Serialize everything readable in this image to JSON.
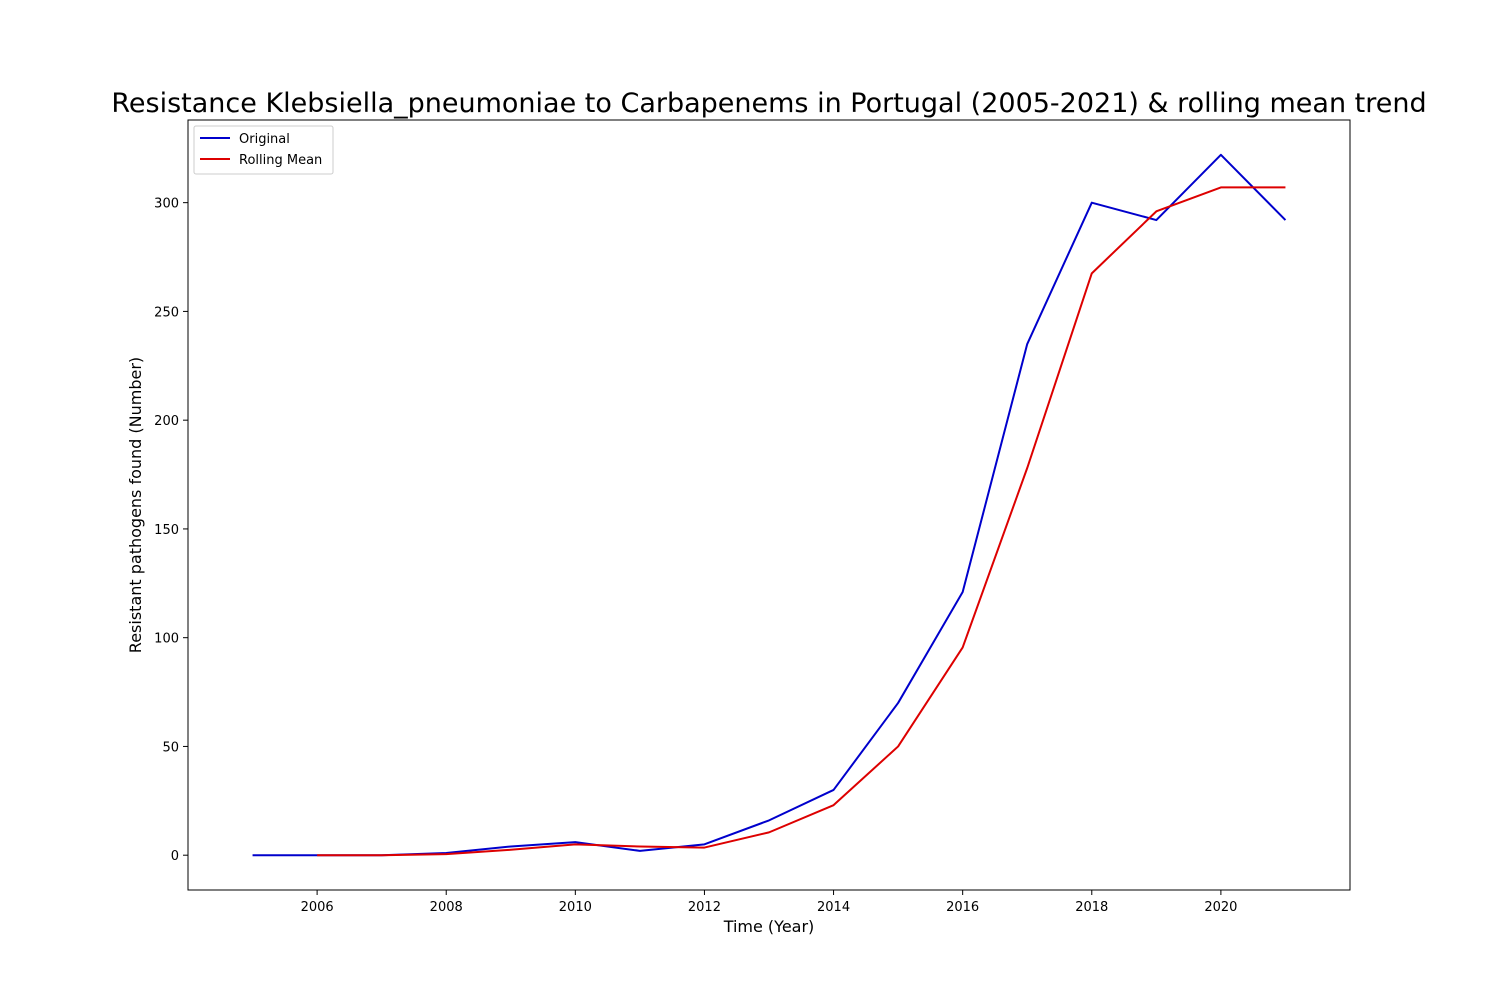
{
  "chart_data": {
    "type": "line",
    "title": "Resistance Klebsiella_pneumoniae to Carbapenems in Portugal (2005-2021) & rolling mean trend",
    "xlabel": "Time (Year)",
    "ylabel": "Resistant pathogens found (Number)",
    "xlim": [
      2004,
      2022
    ],
    "ylim": [
      -16,
      338
    ],
    "xticks": [
      2006,
      2008,
      2010,
      2012,
      2014,
      2016,
      2018,
      2020
    ],
    "yticks": [
      0,
      50,
      100,
      150,
      200,
      250,
      300
    ],
    "grid": false,
    "legend_position": "upper-left",
    "series": [
      {
        "name": "Original",
        "color": "#0000cc",
        "x": [
          2005,
          2006,
          2007,
          2008,
          2009,
          2010,
          2011,
          2012,
          2013,
          2014,
          2015,
          2016,
          2017,
          2018,
          2019,
          2020,
          2021
        ],
        "values": [
          0,
          0,
          0,
          1,
          4,
          6,
          2,
          5,
          16,
          30,
          70,
          121,
          235,
          300,
          292,
          322,
          292
        ]
      },
      {
        "name": "Rolling Mean",
        "color": "#dd0000",
        "x": [
          2006,
          2007,
          2008,
          2009,
          2010,
          2011,
          2012,
          2013,
          2014,
          2015,
          2016,
          2017,
          2018,
          2019,
          2020,
          2021
        ],
        "values": [
          0,
          0,
          0.5,
          2.5,
          5,
          4,
          3.5,
          10.5,
          23,
          50,
          95.5,
          178,
          267.5,
          296,
          307,
          307
        ]
      }
    ]
  }
}
